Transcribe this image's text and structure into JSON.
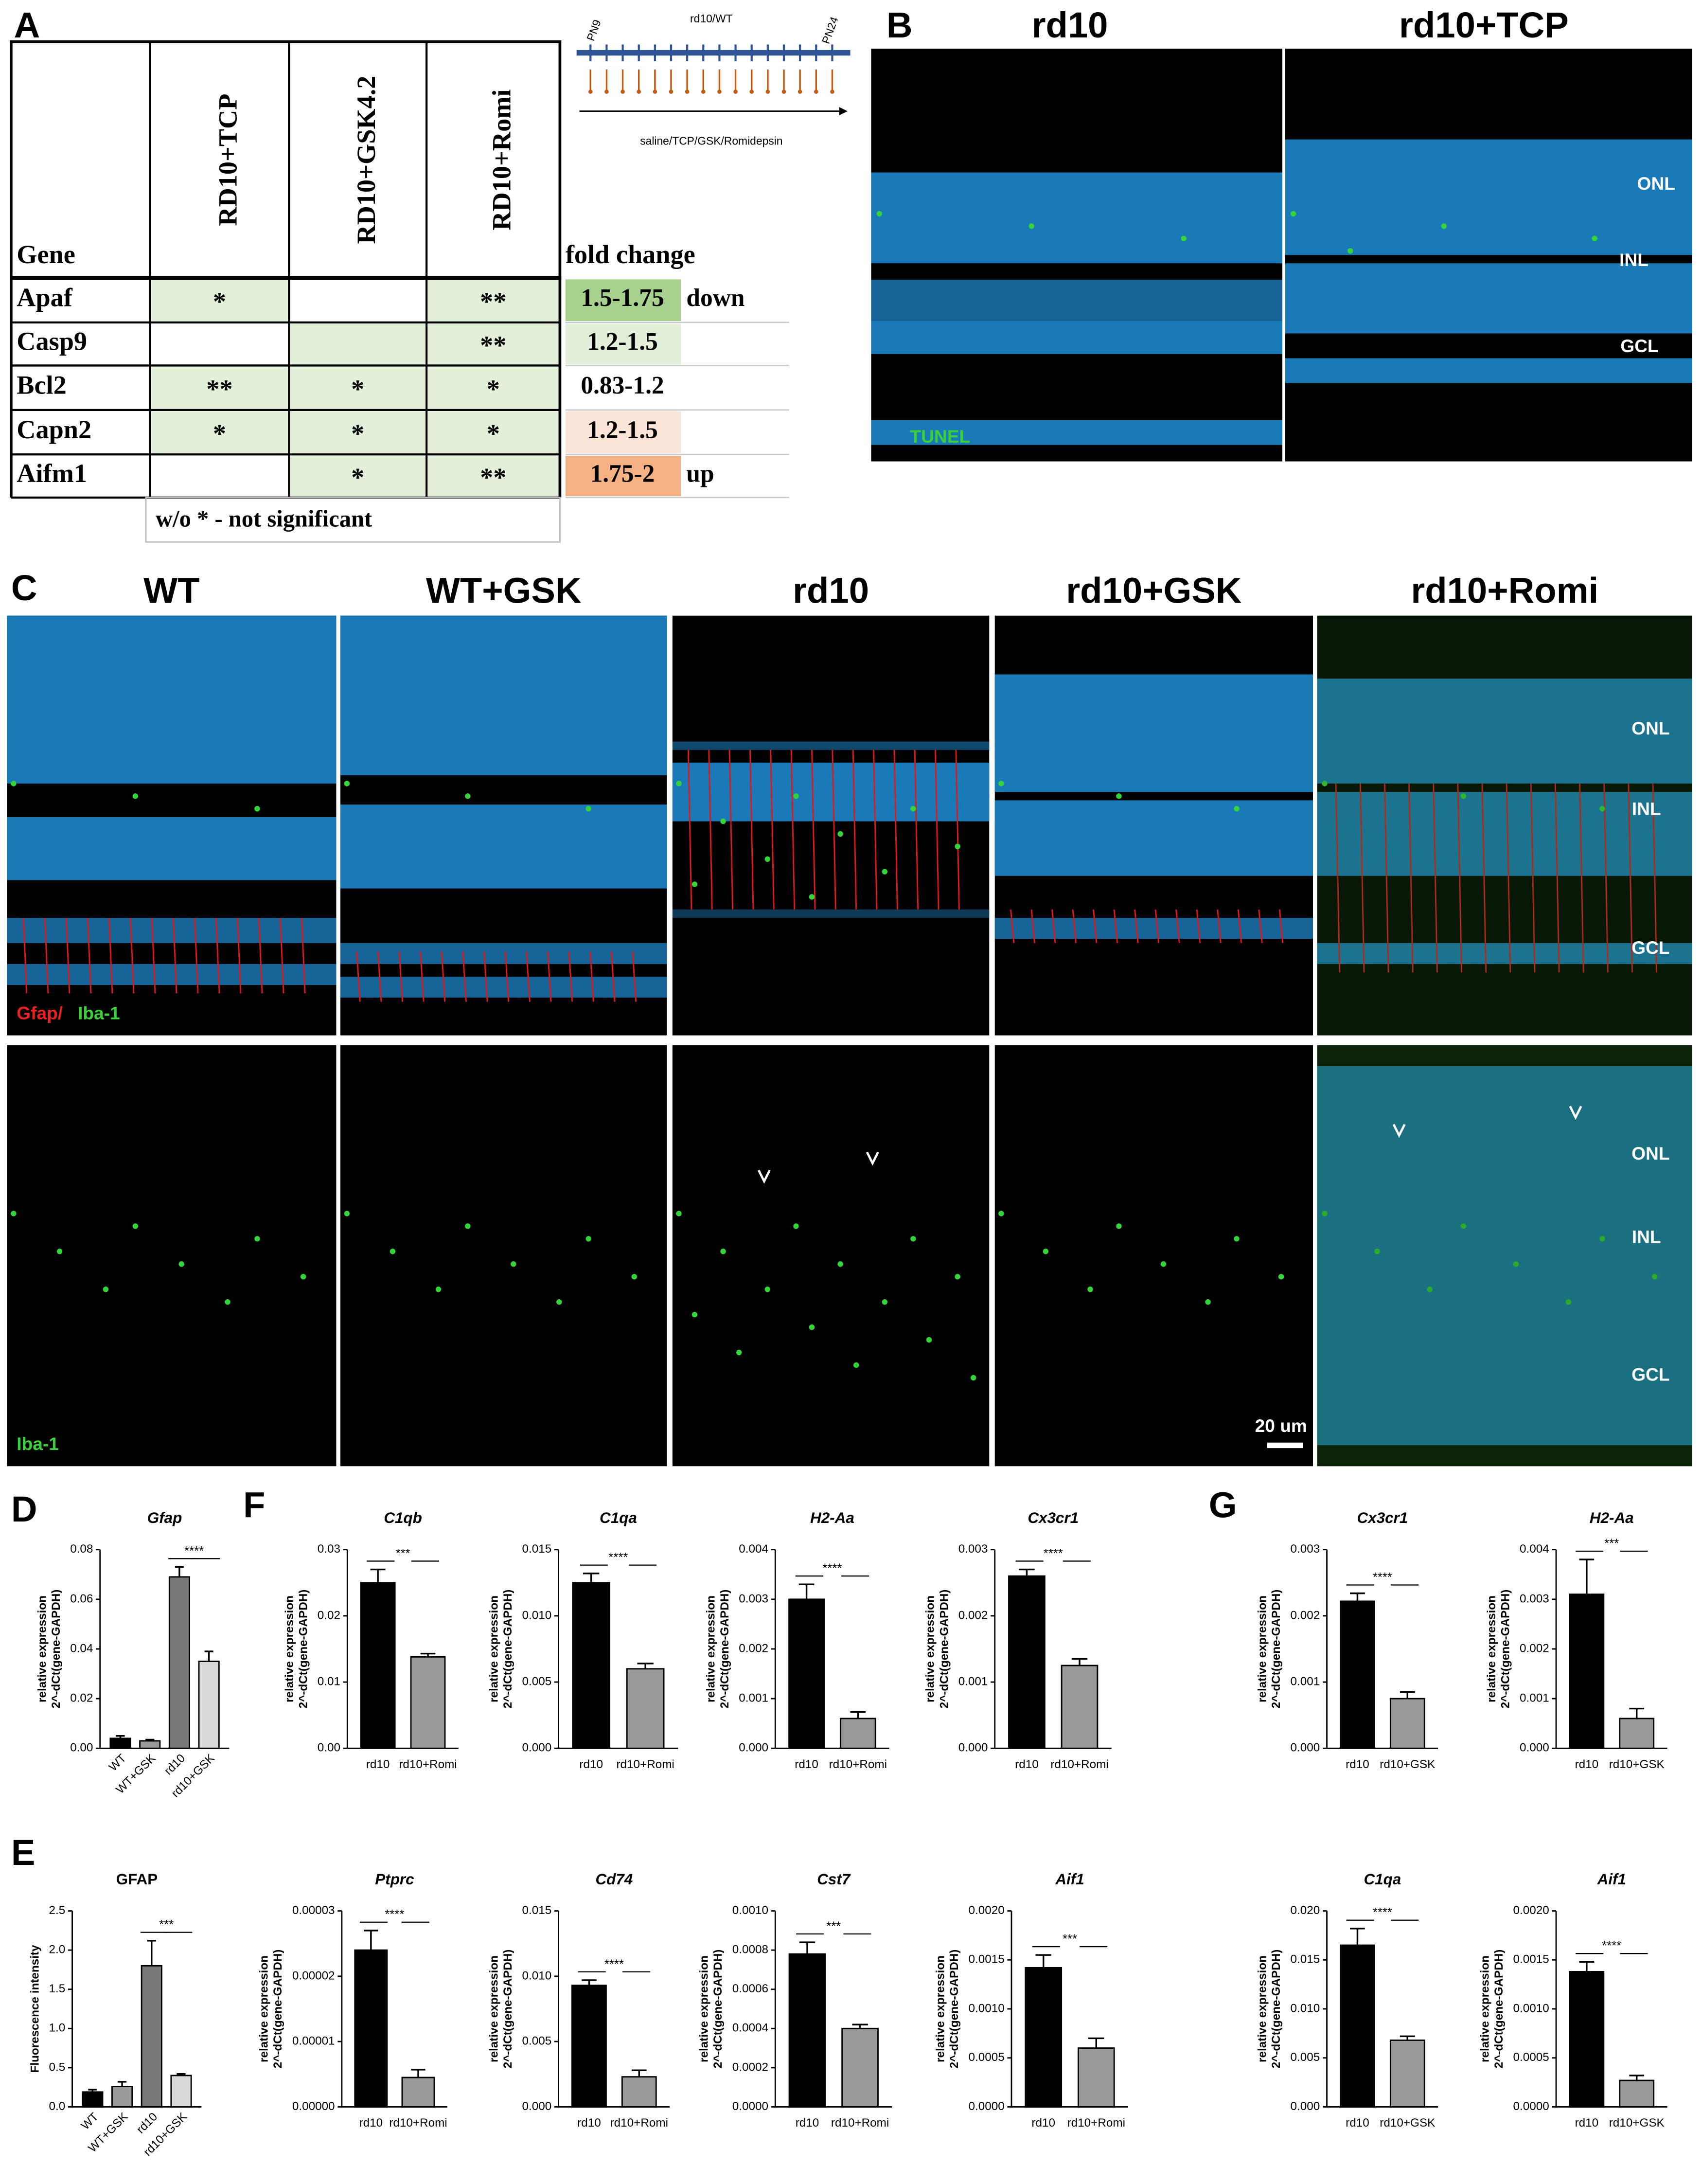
{
  "panel_labels": [
    "A",
    "B",
    "C",
    "D",
    "E",
    "F",
    "G"
  ],
  "table": {
    "header": [
      "Gene",
      "RD10+TCP",
      "RD10+GSK4.2",
      "RD10+Romi"
    ],
    "rows": [
      [
        "Apaf",
        "*",
        null,
        "**"
      ],
      [
        "Casp9",
        null,
        null,
        "**"
      ],
      [
        "Bcl2",
        "**",
        "*",
        "*"
      ],
      [
        "Capn2",
        "*",
        "*",
        "*"
      ],
      [
        "Aifm1",
        null,
        "*",
        "**"
      ]
    ],
    "shaded": [
      [
        true,
        false,
        true
      ],
      [
        false,
        true,
        true
      ],
      [
        true,
        true,
        true
      ],
      [
        true,
        true,
        true
      ],
      [
        false,
        true,
        true
      ]
    ],
    "shade_color": "#e2efd9",
    "footnote": "w/o * - not significant"
  },
  "fold_change": {
    "title": "fold change",
    "rows": [
      {
        "label": "1.5-1.75",
        "color": "#a9d18e",
        "note": "down"
      },
      {
        "label": "1.2-1.5",
        "color": "#e2efd9"
      },
      {
        "label": "0.83-1.2",
        "color": "#ffffff"
      },
      {
        "label": "1.2-1.5",
        "color": "#fbe5d6"
      },
      {
        "label": "1.75-2",
        "color": "#f4b183",
        "note": "up"
      }
    ]
  },
  "timeline": {
    "start": "PN9",
    "title": "rd10/WT",
    "end": "PN24",
    "treatment": "saline/TCP/GSK/Romidepsin"
  },
  "panel_b": {
    "columns": [
      "rd10",
      "rd10+TCP"
    ],
    "layers": [
      "ONL",
      "INL",
      "GCL"
    ],
    "stain": "TUNEL"
  },
  "panel_c": {
    "columns": [
      "WT",
      "WT+GSK",
      "rd10",
      "rd10+GSK",
      "rd10+Romi"
    ],
    "stain_top": [
      "Gfap/",
      "Iba-1"
    ],
    "stain_bottom": "Iba-1",
    "layers_top": [
      "ONL",
      "INL",
      "GCL"
    ],
    "layers_bottom": [
      "ONL",
      "INL",
      "GCL"
    ],
    "scale_bar": "20 um"
  },
  "chart_data": [
    {
      "type": "bar",
      "title": "Gfap",
      "ylabel": [
        "relative expression",
        "2^-dCt(gene-GAPDH)"
      ],
      "categories": [
        "WT",
        "WT+GSK",
        "rd10",
        "rd10+GSK"
      ],
      "values": [
        0.004,
        0.003,
        0.069,
        0.035
      ],
      "errors": [
        0.001,
        0.0005,
        0.004,
        0.004
      ],
      "colors": [
        "#000000",
        "#999999",
        "#777777",
        "#d9d9d9"
      ],
      "ylim": [
        0,
        0.08
      ],
      "yticks": [
        {
          "value": 0,
          "label": "0.00"
        },
        {
          "value": 0.02,
          "label": "0.02"
        },
        {
          "value": 0.04,
          "label": "0.04"
        },
        {
          "value": 0.06,
          "label": "0.06"
        },
        {
          "value": 0.08,
          "label": "0.08"
        }
      ],
      "annotation": "****"
    },
    {
      "type": "bar",
      "title": "GFAP",
      "ylabel": [
        "Fluorescence intensity"
      ],
      "categories": [
        "WT",
        "WT+GSK",
        "rd10",
        "rd10+GSK"
      ],
      "values": [
        0.19,
        0.26,
        1.8,
        0.4
      ],
      "errors": [
        0.03,
        0.06,
        0.32,
        0.02
      ],
      "colors": [
        "#000000",
        "#999999",
        "#777777",
        "#d9d9d9"
      ],
      "ylim": [
        0,
        2.5
      ],
      "yticks": [
        {
          "value": 0,
          "label": "0.0"
        },
        {
          "value": 0.5,
          "label": "0.5"
        },
        {
          "value": 1,
          "label": "1.0"
        },
        {
          "value": 1.5,
          "label": "1.5"
        },
        {
          "value": 2,
          "label": "2.0"
        },
        {
          "value": 2.5,
          "label": "2.5"
        }
      ],
      "annotation": "***"
    },
    {
      "type": "bar",
      "title": "C1qb",
      "ylabel": [
        "relative expression",
        "2^-dCt(gene-GAPDH)"
      ],
      "categories": [
        "rd10",
        "rd10+Romi"
      ],
      "values": [
        0.025,
        0.0138
      ],
      "errors": [
        0.002,
        0.0005
      ],
      "colors": [
        "#000000",
        "#999999"
      ],
      "ylim": [
        0,
        0.03
      ],
      "yticks": [
        {
          "value": 0,
          "label": "0.00"
        },
        {
          "value": 0.01,
          "label": "0.01"
        },
        {
          "value": 0.02,
          "label": "0.02"
        },
        {
          "value": 0.03,
          "label": "0.03"
        }
      ],
      "annotation": "***"
    },
    {
      "type": "bar",
      "title": "C1qa",
      "ylabel": [
        "relative expression",
        "2^-dCt(gene-GAPDH)"
      ],
      "categories": [
        "rd10",
        "rd10+Romi"
      ],
      "values": [
        0.0125,
        0.006
      ],
      "errors": [
        0.0007,
        0.0004
      ],
      "colors": [
        "#000000",
        "#999999"
      ],
      "ylim": [
        0,
        0.015
      ],
      "yticks": [
        {
          "value": 0,
          "label": "0.000"
        },
        {
          "value": 0.005,
          "label": "0.005"
        },
        {
          "value": 0.01,
          "label": "0.010"
        },
        {
          "value": 0.015,
          "label": "0.015"
        }
      ],
      "annotation": "****"
    },
    {
      "type": "bar",
      "title": "H2-Aa",
      "ylabel": [
        "relative expression",
        "2^-dCt(gene-GAPDH)"
      ],
      "categories": [
        "rd10",
        "rd10+Romi"
      ],
      "values": [
        0.003,
        0.0006
      ],
      "errors": [
        0.0003,
        0.00013
      ],
      "colors": [
        "#000000",
        "#999999"
      ],
      "ylim": [
        0,
        0.004
      ],
      "yticks": [
        {
          "value": 0,
          "label": "0.000"
        },
        {
          "value": 0.001,
          "label": "0.001"
        },
        {
          "value": 0.002,
          "label": "0.002"
        },
        {
          "value": 0.003,
          "label": "0.003"
        },
        {
          "value": 0.004,
          "label": "0.004"
        }
      ],
      "annotation": "****"
    },
    {
      "type": "bar",
      "title": "Cx3cr1",
      "ylabel": [
        "relative expression",
        "2^-dCt(gene-GAPDH)"
      ],
      "categories": [
        "rd10",
        "rd10+Romi"
      ],
      "values": [
        0.0026,
        0.00125
      ],
      "errors": [
        0.0001,
        0.0001
      ],
      "colors": [
        "#000000",
        "#999999"
      ],
      "ylim": [
        0,
        0.003
      ],
      "yticks": [
        {
          "value": 0,
          "label": "0.000"
        },
        {
          "value": 0.001,
          "label": "0.001"
        },
        {
          "value": 0.002,
          "label": "0.002"
        },
        {
          "value": 0.003,
          "label": "0.003"
        }
      ],
      "annotation": "****"
    },
    {
      "type": "bar",
      "title": "Ptprc",
      "ylabel": [
        "relative expression",
        "2^-dCt(gene-GAPDH)"
      ],
      "categories": [
        "rd10",
        "rd10+Romi"
      ],
      "values": [
        2.4e-05,
        4.5e-06
      ],
      "errors": [
        3e-06,
        1.2e-06
      ],
      "colors": [
        "#000000",
        "#999999"
      ],
      "ylim": [
        0,
        3e-05
      ],
      "yticks": [
        {
          "value": 0,
          "label": "0.00000"
        },
        {
          "value": 1e-05,
          "label": "0.00001"
        },
        {
          "value": 2e-05,
          "label": "0.00002"
        },
        {
          "value": 3e-05,
          "label": "0.00003"
        }
      ],
      "annotation": "****"
    },
    {
      "type": "bar",
      "title": "Cd74",
      "ylabel": [
        "relative expression",
        "2^-dCt(gene-GAPDH)"
      ],
      "categories": [
        "rd10",
        "rd10+Romi"
      ],
      "values": [
        0.0093,
        0.0023
      ],
      "errors": [
        0.0004,
        0.0005
      ],
      "colors": [
        "#000000",
        "#999999"
      ],
      "ylim": [
        0,
        0.015
      ],
      "yticks": [
        {
          "value": 0,
          "label": "0.000"
        },
        {
          "value": 0.005,
          "label": "0.005"
        },
        {
          "value": 0.01,
          "label": "0.010"
        },
        {
          "value": 0.015,
          "label": "0.015"
        }
      ],
      "annotation": "****"
    },
    {
      "type": "bar",
      "title": "Cst7",
      "ylabel": [
        "relative expression",
        "2^-dCt(gene-GAPDH)"
      ],
      "categories": [
        "rd10",
        "rd10+Romi"
      ],
      "values": [
        0.00078,
        0.0004
      ],
      "errors": [
        6e-05,
        2e-05
      ],
      "colors": [
        "#000000",
        "#999999"
      ],
      "ylim": [
        0,
        0.001
      ],
      "yticks": [
        {
          "value": 0,
          "label": "0.0000"
        },
        {
          "value": 0.0002,
          "label": "0.0002"
        },
        {
          "value": 0.0004,
          "label": "0.0004"
        },
        {
          "value": 0.0006,
          "label": "0.0006"
        },
        {
          "value": 0.0008,
          "label": "0.0008"
        },
        {
          "value": 0.001,
          "label": "0.0010"
        }
      ],
      "annotation": "***"
    },
    {
      "type": "bar",
      "title": "Aif1",
      "ylabel": [
        "relative expression",
        "2^-dCt(gene-GAPDH)"
      ],
      "categories": [
        "rd10",
        "rd10+Romi"
      ],
      "values": [
        0.00142,
        0.0006
      ],
      "errors": [
        0.00013,
        0.0001
      ],
      "colors": [
        "#000000",
        "#999999"
      ],
      "ylim": [
        0,
        0.002
      ],
      "yticks": [
        {
          "value": 0,
          "label": "0.0000"
        },
        {
          "value": 0.0005,
          "label": "0.0005"
        },
        {
          "value": 0.001,
          "label": "0.0010"
        },
        {
          "value": 0.0015,
          "label": "0.0015"
        },
        {
          "value": 0.002,
          "label": "0.0020"
        }
      ],
      "annotation": "***"
    },
    {
      "type": "bar",
      "title": "Cx3cr1",
      "ylabel": [
        "relative expression",
        "2^-dCt(gene-GAPDH)"
      ],
      "categories": [
        "rd10",
        "rd10+GSK"
      ],
      "values": [
        0.00222,
        0.00075
      ],
      "errors": [
        0.00012,
        0.0001
      ],
      "colors": [
        "#000000",
        "#999999"
      ],
      "ylim": [
        0,
        0.003
      ],
      "yticks": [
        {
          "value": 0,
          "label": "0.000"
        },
        {
          "value": 0.001,
          "label": "0.001"
        },
        {
          "value": 0.002,
          "label": "0.002"
        },
        {
          "value": 0.003,
          "label": "0.003"
        }
      ],
      "annotation": "****"
    },
    {
      "type": "bar",
      "title": "H2-Aa",
      "ylabel": [
        "relative expression",
        "2^-dCt(gene-GAPDH)"
      ],
      "categories": [
        "rd10",
        "rd10+GSK"
      ],
      "values": [
        0.0031,
        0.0006
      ],
      "errors": [
        0.0007,
        0.0002
      ],
      "colors": [
        "#000000",
        "#999999"
      ],
      "ylim": [
        0,
        0.004
      ],
      "yticks": [
        {
          "value": 0,
          "label": "0.000"
        },
        {
          "value": 0.001,
          "label": "0.001"
        },
        {
          "value": 0.002,
          "label": "0.002"
        },
        {
          "value": 0.003,
          "label": "0.003"
        },
        {
          "value": 0.004,
          "label": "0.004"
        }
      ],
      "annotation": "***"
    },
    {
      "type": "bar",
      "title": "C1qa",
      "ylabel": [
        "relative expression",
        "2^-dCt(gene-GAPDH)"
      ],
      "categories": [
        "rd10",
        "rd10+GSK"
      ],
      "values": [
        0.0165,
        0.0068
      ],
      "errors": [
        0.0017,
        0.0004
      ],
      "colors": [
        "#000000",
        "#999999"
      ],
      "ylim": [
        0,
        0.02
      ],
      "yticks": [
        {
          "value": 0,
          "label": "0.000"
        },
        {
          "value": 0.005,
          "label": "0.005"
        },
        {
          "value": 0.01,
          "label": "0.010"
        },
        {
          "value": 0.015,
          "label": "0.015"
        },
        {
          "value": 0.02,
          "label": "0.020"
        }
      ],
      "annotation": "****"
    },
    {
      "type": "bar",
      "title": "Aif1",
      "ylabel": [
        "relative expression",
        "2^-dCt(gene-GAPDH)"
      ],
      "categories": [
        "rd10",
        "rd10+GSK"
      ],
      "values": [
        0.00138,
        0.00027
      ],
      "errors": [
        0.0001,
        5e-05
      ],
      "colors": [
        "#000000",
        "#999999"
      ],
      "ylim": [
        0,
        0.002
      ],
      "yticks": [
        {
          "value": 0,
          "label": "0.0000"
        },
        {
          "value": 0.0005,
          "label": "0.0005"
        },
        {
          "value": 0.001,
          "label": "0.0010"
        },
        {
          "value": 0.0015,
          "label": "0.0015"
        },
        {
          "value": 0.002,
          "label": "0.0020"
        }
      ],
      "annotation": "****"
    }
  ]
}
